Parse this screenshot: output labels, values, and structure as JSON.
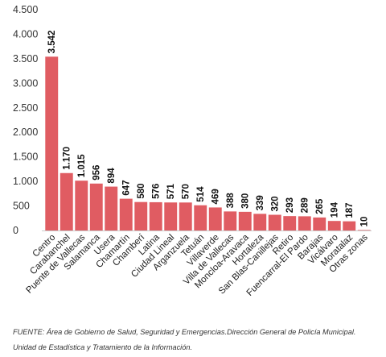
{
  "chart_data": {
    "type": "bar",
    "categories": [
      "Centro",
      "Carabanchel",
      "Puente de Vallecas",
      "Salamanca",
      "Usera",
      "Chamartín",
      "Chamberí",
      "Latina",
      "Ciudad Lineal",
      "Arganzuela",
      "Tetuán",
      "Villaverde",
      "Villa de Vallecas",
      "Moncloa-Aravaca",
      "Hortaleza",
      "San Blas-Canillejas",
      "Retiro",
      "Fuencarral-El Pardo",
      "Barajas",
      "Vicálvaro",
      "Moratalaz",
      "Otras zonas"
    ],
    "values": [
      3542,
      1170,
      1015,
      956,
      894,
      647,
      580,
      576,
      571,
      570,
      514,
      469,
      388,
      380,
      339,
      320,
      293,
      289,
      265,
      194,
      187,
      10
    ],
    "value_labels": [
      "3.542",
      "1.170",
      "1.015",
      "956",
      "894",
      "647",
      "580",
      "576",
      "571",
      "570",
      "514",
      "469",
      "388",
      "380",
      "339",
      "320",
      "293",
      "289",
      "265",
      "194",
      "187",
      "10"
    ],
    "ylim": [
      0,
      4500
    ],
    "yticks": [
      0,
      500,
      1000,
      1500,
      2000,
      2500,
      3000,
      3500,
      4000,
      4500
    ],
    "ytick_labels": [
      "0",
      "500",
      "1.000",
      "1.500",
      "2.000",
      "2.500",
      "3.000",
      "3.500",
      "4.000",
      "4.500"
    ],
    "bar_color": "#e05c62",
    "grid": false,
    "title": "",
    "xlabel": "",
    "ylabel": ""
  },
  "source_note": "FUENTE: Área de Gobierno de Salud, Seguridad y Emergencias.Dirección General de Policía Municipal. Unidad de Estadística y Tratamiento de la Información."
}
